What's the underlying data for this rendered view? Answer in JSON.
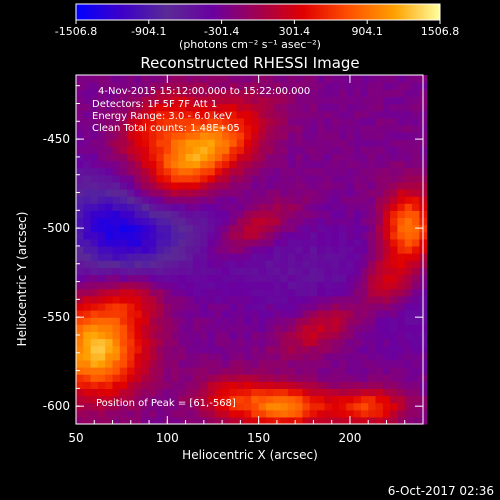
{
  "chart_data": {
    "type": "heatmap",
    "title": "Reconstructed RHESSI Image",
    "xlabel": "Heliocentric X (arcsec)",
    "ylabel": "Heliocentric Y (arcsec)",
    "xlim": [
      50,
      240
    ],
    "ylim": [
      -610,
      -414
    ],
    "x_ticks": [
      50,
      100,
      150,
      200
    ],
    "y_ticks": [
      -450,
      -500,
      -550,
      -600
    ],
    "colorbar": {
      "ticks": [
        "-1506.8",
        "-904.1",
        "-301.4",
        "301.4",
        "904.1",
        "1506.8"
      ],
      "range": [
        -1506.8,
        1506.8
      ],
      "unit_label": "(photons cm⁻² s⁻¹ asec⁻²)",
      "colormap": [
        "#0000ff",
        "#3d00c8",
        "#5a2a96",
        "#6a00a0",
        "#a00050",
        "#e00000",
        "#ff5000",
        "#ffa000",
        "#ffffa0"
      ]
    },
    "info_lines": [
      "4-Nov-2015 15:12:00.000 to 15:22:00.000",
      "Detectors: 1F 5F 7F  Att 1",
      "Energy Range: 3.0 - 6.0 keV",
      "Clean     Total counts: 1.48E+05"
    ],
    "peak_label": "Position of Peak = [61,-568]",
    "sources": [
      {
        "x": 117,
        "y": -458,
        "peak": 1450,
        "sx": 26,
        "sy": 13,
        "angle": -0.6
      },
      {
        "x": 95,
        "y": -440,
        "peak": 700,
        "sx": 18,
        "sy": 10,
        "angle": -0.6
      },
      {
        "x": 148,
        "y": -500,
        "peak": 600,
        "sx": 18,
        "sy": 8,
        "angle": -0.5
      },
      {
        "x": 61,
        "y": -568,
        "peak": 1506.8,
        "sx": 18,
        "sy": 18,
        "angle": 0
      },
      {
        "x": 80,
        "y": -540,
        "peak": 500,
        "sx": 14,
        "sy": 10,
        "angle": 0
      },
      {
        "x": 232,
        "y": -500,
        "peak": 1250,
        "sx": 10,
        "sy": 15,
        "angle": 0
      },
      {
        "x": 220,
        "y": -530,
        "peak": 700,
        "sx": 10,
        "sy": 10,
        "angle": 0
      },
      {
        "x": 185,
        "y": -555,
        "peak": 550,
        "sx": 18,
        "sy": 8,
        "angle": -0.5
      },
      {
        "x": 165,
        "y": -600,
        "peak": 1200,
        "sx": 16,
        "sy": 8,
        "angle": 0
      },
      {
        "x": 135,
        "y": -595,
        "peak": 650,
        "sx": 14,
        "sy": 9,
        "angle": 0
      },
      {
        "x": 210,
        "y": -600,
        "peak": 900,
        "sx": 14,
        "sy": 7,
        "angle": 0
      }
    ],
    "background_level": -260,
    "negative_region": {
      "x": 75,
      "y": -500,
      "level": -900,
      "sx": 22,
      "sy": 18
    }
  },
  "footer": {
    "timestamp": "6-Oct-2017 02:36"
  }
}
